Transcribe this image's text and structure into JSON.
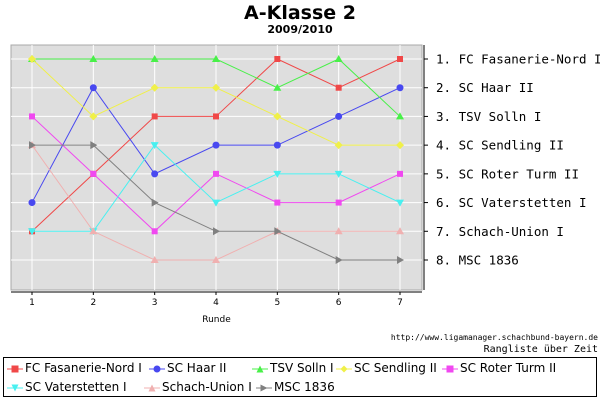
{
  "chart_data": {
    "type": "line",
    "title": "A-Klasse 2",
    "subtitle": "2009/2010",
    "xlabel": "Runde",
    "ylabel": "",
    "x": [
      1,
      2,
      3,
      4,
      5,
      6,
      7
    ],
    "ylim": [
      1,
      8
    ],
    "y_inverted": true,
    "grid": true,
    "legend_position": "bottom",
    "rank_labels": [
      "1. FC Fasanerie-Nord I",
      "2. SC Haar II",
      "3. TSV Solln I",
      "4. SC Sendling II",
      "5. SC Roter Turm II",
      "6. SC Vaterstetten I",
      "7. Schach-Union I",
      "8. MSC 1836"
    ],
    "series": [
      {
        "name": "FC Fasanerie-Nord I",
        "color": "#f04848",
        "marker": "square",
        "values": [
          7,
          5,
          3,
          3,
          1,
          2,
          1
        ]
      },
      {
        "name": "SC Haar II",
        "color": "#4848f0",
        "marker": "circle",
        "values": [
          6,
          2,
          5,
          4,
          4,
          3,
          2
        ]
      },
      {
        "name": "TSV Solln I",
        "color": "#48f048",
        "marker": "triangle",
        "values": [
          1,
          1,
          1,
          1,
          2,
          1,
          3
        ]
      },
      {
        "name": "SC Sendling II",
        "color": "#f0f048",
        "marker": "diamond",
        "values": [
          1,
          3,
          2,
          2,
          3,
          4,
          4
        ]
      },
      {
        "name": "SC Roter Turm II",
        "color": "#f048f0",
        "marker": "square",
        "values": [
          3,
          5,
          7,
          5,
          6,
          6,
          5
        ]
      },
      {
        "name": "SC Vaterstetten I",
        "color": "#48f0f0",
        "marker": "down-triangle",
        "values": [
          7,
          7,
          4,
          6,
          5,
          5,
          6
        ]
      },
      {
        "name": "Schach-Union I",
        "color": "#f0b0b0",
        "marker": "triangle",
        "values": [
          4,
          7,
          8,
          8,
          7,
          7,
          7
        ]
      },
      {
        "name": "MSC 1836",
        "color": "#808080",
        "marker": "right-triangle",
        "values": [
          4,
          4,
          6,
          7,
          7,
          8,
          8
        ]
      }
    ]
  },
  "footer": {
    "source_url": "http://www.ligamanager.schachbund-bayern.de",
    "caption": "Rangliste über Zeit"
  }
}
